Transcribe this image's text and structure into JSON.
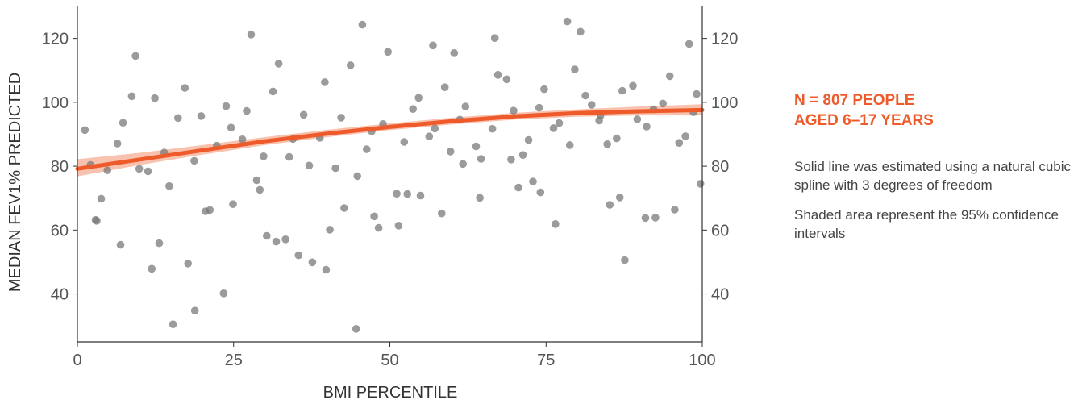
{
  "colors": {
    "points": "#7a7a7a",
    "fit_line": "#ee5a2a",
    "band": "#f4a184",
    "axis": "#333333",
    "annotation": "#ee5a2a"
  },
  "annotation": {
    "n_line1": "N = 807 PEOPLE",
    "n_line2": "AGED 6–17 YEARS",
    "note1": "Solid line was estimated using a natural cubic spline with 3 degrees of freedom",
    "note2": "Shaded area represent the 95% confidence intervals"
  },
  "chart_data": {
    "type": "scatter",
    "title": "",
    "xlabel": "BMI PERCENTILE",
    "ylabel": "MEDIAN FEV1% PREDICTED",
    "xlim": [
      0,
      100
    ],
    "ylim": [
      25,
      130
    ],
    "xticks": [
      0,
      25,
      50,
      75,
      100
    ],
    "yticks": [
      40,
      60,
      80,
      100,
      120
    ],
    "secondary_y_axis": true,
    "grid": false,
    "points": {
      "x": [
        2.1,
        4.8,
        7.3,
        9.9,
        12.4,
        14.7,
        17.2,
        19.8,
        22.3,
        24.6,
        27.1,
        29.8,
        32.2,
        34.5,
        37.1,
        39.6,
        42.2,
        44.8,
        47.1,
        49.7,
        52.3,
        54.6,
        57.2,
        59.7,
        62.1,
        64.6,
        67.3,
        69.8,
        72.2,
        74.7,
        77.1,
        79.6,
        82.3,
        84.8,
        87.2,
        89.6,
        92.2,
        94.8,
        97.3,
        99.1,
        1.2,
        3.8,
        6.4,
        8.7,
        11.3,
        13.9,
        16.1,
        18.7,
        21.2,
        23.8,
        26.4,
        28.7,
        31.3,
        33.9,
        36.2,
        38.8,
        41.3,
        43.7,
        46.3,
        48.9,
        51.1,
        53.7,
        56.3,
        58.8,
        61.2,
        63.8,
        66.4,
        68.7,
        71.3,
        73.9,
        76.2,
        78.8,
        81.3,
        83.7,
        86.3,
        88.9,
        91.1,
        93.7,
        96.3,
        98.6,
        15.3,
        18.8,
        23.4,
        44.6,
        39.8,
        11.9,
        35.4,
        87.6,
        76.5,
        2.9,
        30.3,
        51.4,
        64.4,
        70.6,
        80.5,
        45.6,
        27.8,
        56.9,
        92.5,
        60.3,
        6.9,
        33.3,
        48.2,
        72.9,
        85.2,
        9.3,
        13.1,
        24.9,
        37.6,
        42.7,
        54.9,
        66.8,
        78.4,
        95.6,
        99.7,
        3.1,
        17.7,
        29.2,
        40.4,
        52.8,
        61.7,
        69.4,
        83.5,
        90.9,
        20.5,
        31.8,
        47.5,
        58.3,
        74.1,
        86.8,
        97.9
      ],
      "y": [
        80.4,
        78.7,
        93.6,
        79.2,
        101.3,
        73.8,
        104.5,
        95.7,
        86.4,
        92.1,
        97.3,
        83.1,
        112.1,
        88.5,
        80.2,
        106.3,
        95.2,
        76.9,
        90.9,
        115.8,
        87.6,
        101.4,
        91.8,
        84.6,
        98.7,
        82.3,
        108.6,
        97.4,
        88.2,
        104.1,
        93.5,
        110.3,
        99.2,
        86.9,
        103.6,
        94.7,
        97.8,
        108.2,
        89.4,
        102.6,
        91.3,
        69.8,
        87.1,
        101.9,
        78.4,
        84.3,
        95.1,
        81.7,
        66.3,
        98.8,
        88.4,
        75.6,
        103.4,
        82.9,
        96.1,
        88.9,
        79.4,
        111.6,
        85.3,
        93.2,
        71.4,
        97.9,
        89.3,
        104.7,
        94.6,
        86.2,
        91.7,
        107.2,
        83.5,
        98.3,
        91.9,
        86.6,
        102.1,
        95.8,
        88.7,
        105.2,
        92.4,
        99.6,
        87.3,
        96.9,
        30.5,
        34.8,
        40.2,
        29.1,
        47.6,
        47.9,
        52.1,
        50.6,
        61.9,
        63.2,
        58.2,
        61.4,
        70.1,
        73.3,
        122.1,
        124.3,
        121.2,
        117.8,
        63.9,
        115.4,
        55.4,
        57.1,
        60.7,
        75.2,
        67.9,
        114.5,
        55.9,
        68.1,
        49.9,
        66.9,
        70.8,
        120.1,
        125.3,
        66.4,
        74.5,
        62.9,
        49.5,
        72.6,
        60.1,
        71.3,
        80.7,
        82.1,
        94.3,
        63.8,
        65.9,
        56.4,
        64.3,
        65.2,
        71.8,
        70.2,
        118.3
      ],
      "note": "representative subset of the 807 plotted observations"
    },
    "fit": {
      "x": [
        0,
        10,
        20,
        30,
        40,
        50,
        60,
        70,
        80,
        90,
        100
      ],
      "y": [
        79.2,
        82.1,
        85.0,
        87.8,
        90.2,
        92.3,
        94.1,
        95.6,
        96.6,
        97.2,
        97.6
      ],
      "ci_lower": [
        76.8,
        80.4,
        83.6,
        86.6,
        89.1,
        91.3,
        93.1,
        94.6,
        95.5,
        95.9,
        95.9
      ],
      "ci_upper": [
        82.2,
        84.2,
        86.6,
        89.1,
        91.4,
        93.4,
        95.2,
        96.7,
        97.8,
        98.7,
        99.4
      ]
    }
  }
}
